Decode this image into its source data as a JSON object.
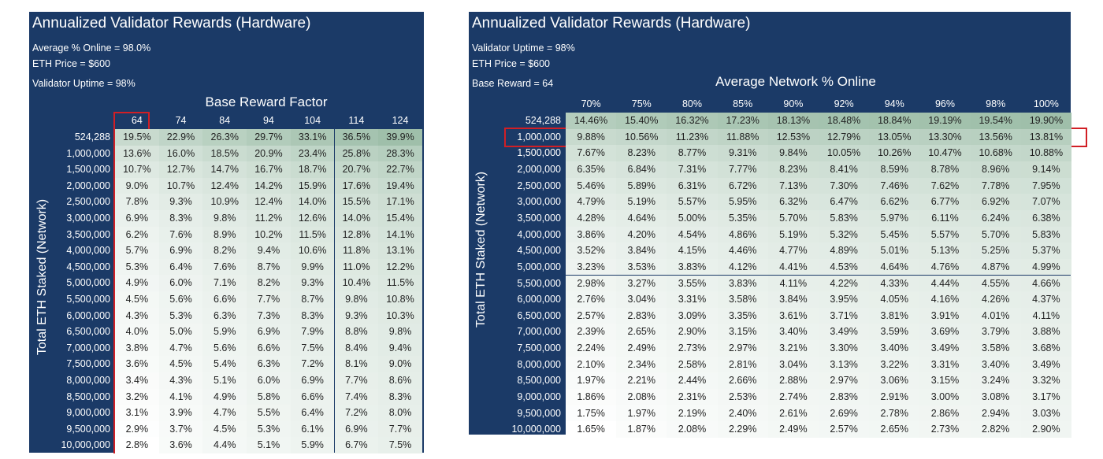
{
  "chart_data": [
    {
      "type": "table",
      "title": "Annualized Validator Rewards (Hardware)",
      "info": [
        "Average % Online = 98.0%",
        "ETH Price = $600",
        "Validator Uptime = 98%"
      ],
      "column_header": "Base Reward Factor",
      "row_header": "Total ETH Staked (Network)",
      "columns": [
        "64",
        "74",
        "84",
        "94",
        "104",
        "114",
        "124"
      ],
      "rows": [
        {
          "label": "524,288",
          "values": [
            "19.5%",
            "22.9%",
            "26.3%",
            "29.7%",
            "33.1%",
            "36.5%",
            "39.9%"
          ]
        },
        {
          "label": "1,000,000",
          "values": [
            "13.6%",
            "16.0%",
            "18.5%",
            "20.9%",
            "23.4%",
            "25.8%",
            "28.3%"
          ]
        },
        {
          "label": "1,500,000",
          "values": [
            "10.7%",
            "12.7%",
            "14.7%",
            "16.7%",
            "18.7%",
            "20.7%",
            "22.7%"
          ]
        },
        {
          "label": "2,000,000",
          "values": [
            "9.0%",
            "10.7%",
            "12.4%",
            "14.2%",
            "15.9%",
            "17.6%",
            "19.4%"
          ]
        },
        {
          "label": "2,500,000",
          "values": [
            "7.8%",
            "9.3%",
            "10.9%",
            "12.4%",
            "14.0%",
            "15.5%",
            "17.1%"
          ]
        },
        {
          "label": "3,000,000",
          "values": [
            "6.9%",
            "8.3%",
            "9.8%",
            "11.2%",
            "12.6%",
            "14.0%",
            "15.4%"
          ]
        },
        {
          "label": "3,500,000",
          "values": [
            "6.2%",
            "7.6%",
            "8.9%",
            "10.2%",
            "11.5%",
            "12.8%",
            "14.1%"
          ]
        },
        {
          "label": "4,000,000",
          "values": [
            "5.7%",
            "6.9%",
            "8.2%",
            "9.4%",
            "10.6%",
            "11.8%",
            "13.1%"
          ]
        },
        {
          "label": "4,500,000",
          "values": [
            "5.3%",
            "6.4%",
            "7.6%",
            "8.7%",
            "9.9%",
            "11.0%",
            "12.2%"
          ]
        },
        {
          "label": "5,000,000",
          "values": [
            "4.9%",
            "6.0%",
            "7.1%",
            "8.2%",
            "9.3%",
            "10.4%",
            "11.5%"
          ]
        },
        {
          "label": "5,500,000",
          "values": [
            "4.5%",
            "5.6%",
            "6.6%",
            "7.7%",
            "8.7%",
            "9.8%",
            "10.8%"
          ]
        },
        {
          "label": "6,000,000",
          "values": [
            "4.3%",
            "5.3%",
            "6.3%",
            "7.3%",
            "8.3%",
            "9.3%",
            "10.3%"
          ]
        },
        {
          "label": "6,500,000",
          "values": [
            "4.0%",
            "5.0%",
            "5.9%",
            "6.9%",
            "7.9%",
            "8.8%",
            "9.8%"
          ]
        },
        {
          "label": "7,000,000",
          "values": [
            "3.8%",
            "4.7%",
            "5.6%",
            "6.6%",
            "7.5%",
            "8.4%",
            "9.4%"
          ]
        },
        {
          "label": "7,500,000",
          "values": [
            "3.6%",
            "4.5%",
            "5.4%",
            "6.3%",
            "7.2%",
            "8.1%",
            "9.0%"
          ]
        },
        {
          "label": "8,000,000",
          "values": [
            "3.4%",
            "4.3%",
            "5.1%",
            "6.0%",
            "6.9%",
            "7.7%",
            "8.6%"
          ]
        },
        {
          "label": "8,500,000",
          "values": [
            "3.2%",
            "4.1%",
            "4.9%",
            "5.8%",
            "6.6%",
            "7.4%",
            "8.3%"
          ]
        },
        {
          "label": "9,000,000",
          "values": [
            "3.1%",
            "3.9%",
            "4.7%",
            "5.5%",
            "6.4%",
            "7.2%",
            "8.0%"
          ]
        },
        {
          "label": "9,500,000",
          "values": [
            "2.9%",
            "3.7%",
            "4.5%",
            "5.3%",
            "6.1%",
            "6.9%",
            "7.7%"
          ]
        },
        {
          "label": "10,000,000",
          "values": [
            "2.8%",
            "3.6%",
            "4.4%",
            "5.1%",
            "5.9%",
            "6.7%",
            "7.5%"
          ]
        }
      ],
      "highlight": {
        "column": "64"
      }
    },
    {
      "type": "table",
      "title": "Annualized Validator Rewards (Hardware)",
      "info": [
        "Validator Uptime = 98%",
        "ETH Price = $600",
        "Base Reward = 64"
      ],
      "column_header": "Average Network % Online",
      "row_header": "Total ETH Staked (Network)",
      "columns": [
        "70%",
        "75%",
        "80%",
        "85%",
        "90%",
        "92%",
        "94%",
        "96%",
        "98%",
        "100%"
      ],
      "rows": [
        {
          "label": "524,288",
          "values": [
            "14.46%",
            "15.40%",
            "16.32%",
            "17.23%",
            "18.13%",
            "18.48%",
            "18.84%",
            "19.19%",
            "19.54%",
            "19.90%"
          ]
        },
        {
          "label": "1,000,000",
          "values": [
            "9.88%",
            "10.56%",
            "11.23%",
            "11.88%",
            "12.53%",
            "12.79%",
            "13.05%",
            "13.30%",
            "13.56%",
            "13.81%"
          ]
        },
        {
          "label": "1,500,000",
          "values": [
            "7.67%",
            "8.23%",
            "8.77%",
            "9.31%",
            "9.84%",
            "10.05%",
            "10.26%",
            "10.47%",
            "10.68%",
            "10.88%"
          ]
        },
        {
          "label": "2,000,000",
          "values": [
            "6.35%",
            "6.84%",
            "7.31%",
            "7.77%",
            "8.23%",
            "8.41%",
            "8.59%",
            "8.78%",
            "8.96%",
            "9.14%"
          ]
        },
        {
          "label": "2,500,000",
          "values": [
            "5.46%",
            "5.89%",
            "6.31%",
            "6.72%",
            "7.13%",
            "7.30%",
            "7.46%",
            "7.62%",
            "7.78%",
            "7.95%"
          ]
        },
        {
          "label": "3,000,000",
          "values": [
            "4.79%",
            "5.19%",
            "5.57%",
            "5.95%",
            "6.32%",
            "6.47%",
            "6.62%",
            "6.77%",
            "6.92%",
            "7.07%"
          ]
        },
        {
          "label": "3,500,000",
          "values": [
            "4.28%",
            "4.64%",
            "5.00%",
            "5.35%",
            "5.70%",
            "5.83%",
            "5.97%",
            "6.11%",
            "6.24%",
            "6.38%"
          ]
        },
        {
          "label": "4,000,000",
          "values": [
            "3.86%",
            "4.20%",
            "4.54%",
            "4.86%",
            "5.19%",
            "5.32%",
            "5.45%",
            "5.57%",
            "5.70%",
            "5.83%"
          ]
        },
        {
          "label": "4,500,000",
          "values": [
            "3.52%",
            "3.84%",
            "4.15%",
            "4.46%",
            "4.77%",
            "4.89%",
            "5.01%",
            "5.13%",
            "5.25%",
            "5.37%"
          ]
        },
        {
          "label": "5,000,000",
          "values": [
            "3.23%",
            "3.53%",
            "3.83%",
            "4.12%",
            "4.41%",
            "4.53%",
            "4.64%",
            "4.76%",
            "4.87%",
            "4.99%"
          ]
        },
        {
          "label": "5,500,000",
          "values": [
            "2.98%",
            "3.27%",
            "3.55%",
            "3.83%",
            "4.11%",
            "4.22%",
            "4.33%",
            "4.44%",
            "4.55%",
            "4.66%"
          ]
        },
        {
          "label": "6,000,000",
          "values": [
            "2.76%",
            "3.04%",
            "3.31%",
            "3.58%",
            "3.84%",
            "3.95%",
            "4.05%",
            "4.16%",
            "4.26%",
            "4.37%"
          ]
        },
        {
          "label": "6,500,000",
          "values": [
            "2.57%",
            "2.83%",
            "3.09%",
            "3.35%",
            "3.61%",
            "3.71%",
            "3.81%",
            "3.91%",
            "4.01%",
            "4.11%"
          ]
        },
        {
          "label": "7,000,000",
          "values": [
            "2.39%",
            "2.65%",
            "2.90%",
            "3.15%",
            "3.40%",
            "3.49%",
            "3.59%",
            "3.69%",
            "3.79%",
            "3.88%"
          ]
        },
        {
          "label": "7,500,000",
          "values": [
            "2.24%",
            "2.49%",
            "2.73%",
            "2.97%",
            "3.21%",
            "3.30%",
            "3.40%",
            "3.49%",
            "3.58%",
            "3.68%"
          ]
        },
        {
          "label": "8,000,000",
          "values": [
            "2.10%",
            "2.34%",
            "2.58%",
            "2.81%",
            "3.04%",
            "3.13%",
            "3.22%",
            "3.31%",
            "3.40%",
            "3.49%"
          ]
        },
        {
          "label": "8,500,000",
          "values": [
            "1.97%",
            "2.21%",
            "2.44%",
            "2.66%",
            "2.88%",
            "2.97%",
            "3.06%",
            "3.15%",
            "3.24%",
            "3.32%"
          ]
        },
        {
          "label": "9,000,000",
          "values": [
            "1.86%",
            "2.08%",
            "2.31%",
            "2.53%",
            "2.74%",
            "2.83%",
            "2.91%",
            "3.00%",
            "3.08%",
            "3.17%"
          ]
        },
        {
          "label": "9,500,000",
          "values": [
            "1.75%",
            "1.97%",
            "2.19%",
            "2.40%",
            "2.61%",
            "2.69%",
            "2.78%",
            "2.86%",
            "2.94%",
            "3.03%"
          ]
        },
        {
          "label": "10,000,000",
          "values": [
            "1.65%",
            "1.87%",
            "2.08%",
            "2.29%",
            "2.49%",
            "2.57%",
            "2.65%",
            "2.73%",
            "2.82%",
            "2.90%"
          ]
        }
      ],
      "highlight": {
        "row": "1,000,000"
      }
    }
  ],
  "colors": {
    "panel": "#1b3a67",
    "heat_high": "#9fbfaa",
    "heat_low": "#ffffff",
    "highlight": "#d11f25"
  }
}
